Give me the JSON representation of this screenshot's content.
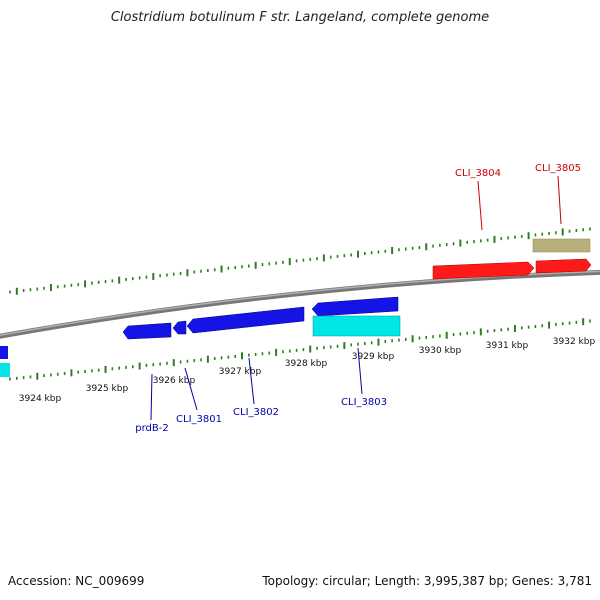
{
  "title": "Clostridium botulinum F str. Langeland, complete genome",
  "footer": {
    "accession": "Accession: NC_009699",
    "topology": "Topology: circular; Length: 3,995,387 bp; Genes: 3,781"
  },
  "colors": {
    "backbone": "#8a8a8a",
    "tick": "#2e7d1e",
    "forward_gene": "#ff1a1a",
    "reverse_gene": "#1414e6",
    "rna": "#00e5e5",
    "other": "#b7b07a",
    "forward_label": "#cc0000",
    "reverse_label": "#0000aa"
  },
  "scale": {
    "labels": [
      "3924 kbp",
      "3925 kbp",
      "3926 kbp",
      "3927 kbp",
      "3928 kbp",
      "3929 kbp",
      "3930 kbp",
      "3931 kbp",
      "3932 kbp"
    ]
  },
  "genes": [
    {
      "name": "prdB-2",
      "strand": "reverse"
    },
    {
      "name": "CLI_3801",
      "strand": "reverse"
    },
    {
      "name": "CLI_3802",
      "strand": "reverse"
    },
    {
      "name": "CLI_3803",
      "strand": "reverse"
    },
    {
      "name": "CLI_3804",
      "strand": "forward"
    },
    {
      "name": "CLI_3805",
      "strand": "forward"
    }
  ]
}
